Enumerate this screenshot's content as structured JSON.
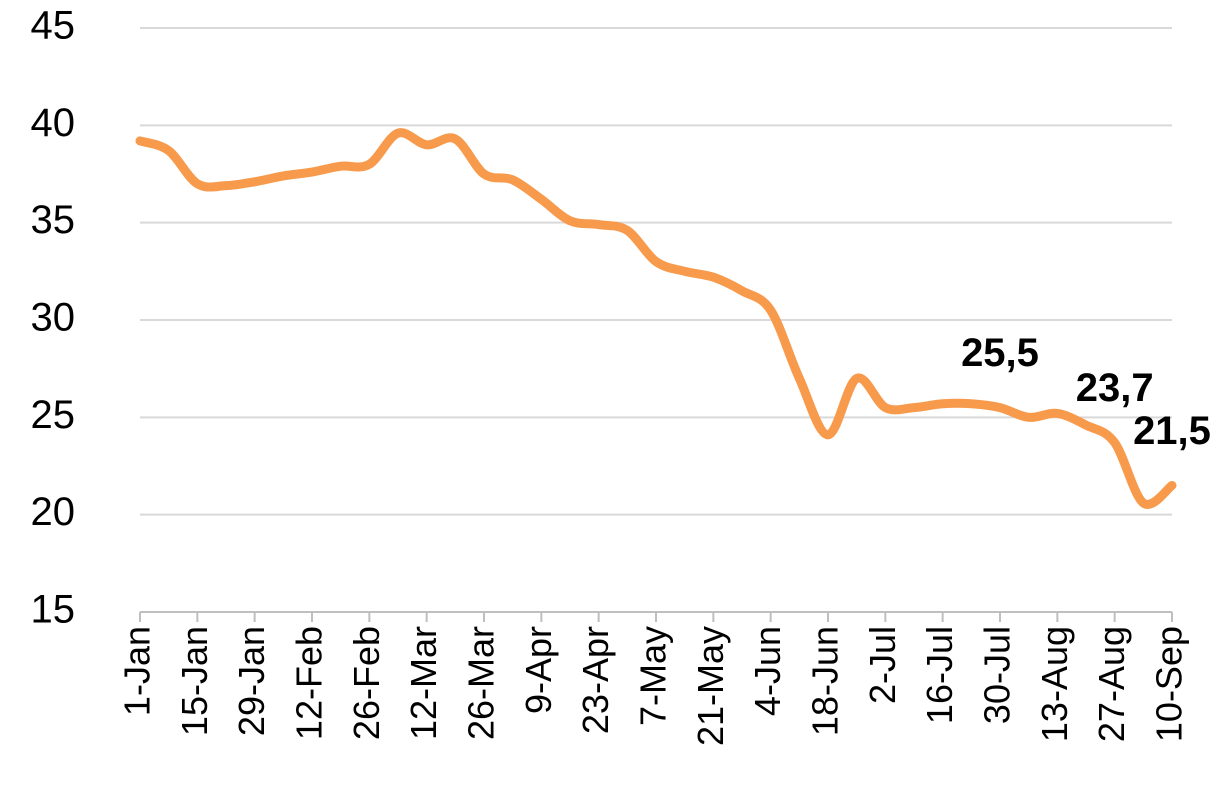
{
  "chart_data": {
    "type": "line",
    "categories": [
      "1-Jan",
      null,
      "15-Jan",
      null,
      "29-Jan",
      null,
      "12-Feb",
      null,
      "26-Feb",
      null,
      "12-Mar",
      null,
      "26-Mar",
      null,
      "9-Apr",
      null,
      "23-Apr",
      null,
      "7-May",
      null,
      "21-May",
      null,
      "4-Jun",
      null,
      "18-Jun",
      null,
      "2-Jul",
      null,
      "16-Jul",
      null,
      "30-Jul",
      null,
      "13-Aug",
      null,
      "27-Aug",
      null,
      "10-Sep"
    ],
    "series": [
      {
        "color": "#f79a4c",
        "values": [
          39.2,
          38.7,
          37.0,
          36.9,
          37.1,
          37.4,
          37.6,
          37.9,
          38.0,
          39.6,
          39.0,
          39.3,
          37.5,
          37.2,
          36.2,
          35.1,
          34.9,
          34.6,
          33.0,
          32.5,
          32.2,
          31.5,
          30.5,
          27.0,
          24.1,
          27.0,
          25.5,
          25.5,
          25.7,
          25.7,
          25.5,
          25.0,
          25.2,
          24.6,
          23.7,
          20.6,
          21.5
        ],
        "value_labels": [
          null,
          null,
          null,
          null,
          null,
          null,
          null,
          null,
          null,
          null,
          null,
          null,
          null,
          null,
          null,
          null,
          null,
          null,
          null,
          null,
          null,
          null,
          null,
          null,
          null,
          null,
          null,
          null,
          null,
          null,
          "25,5",
          null,
          null,
          null,
          "23,7",
          null,
          "21,5"
        ]
      }
    ],
    "ylim": [
      15,
      45
    ],
    "yticks": [
      15,
      20,
      25,
      30,
      35,
      40,
      45
    ],
    "grid": true
  }
}
